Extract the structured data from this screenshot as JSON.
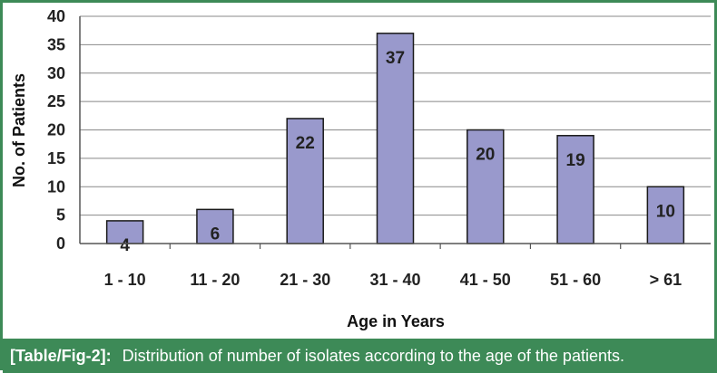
{
  "chart_data": {
    "type": "bar",
    "categories": [
      "1 - 10",
      "11 - 20",
      "21 - 30",
      "31 - 40",
      "41 - 50",
      "51 - 60",
      "> 61"
    ],
    "values": [
      4,
      6,
      22,
      37,
      20,
      19,
      10
    ],
    "data_labels": [
      "4",
      "6",
      "22",
      "37",
      "20",
      "19",
      "10"
    ],
    "xlabel": "Age in Years",
    "ylabel": "No. of Patients",
    "ylim": [
      0,
      40
    ],
    "yticks": [
      0,
      5,
      10,
      15,
      20,
      25,
      30,
      35,
      40
    ],
    "grid": true,
    "legend": "none",
    "bar_color": "#9999cc",
    "bar_edge_color": "#1a1a1a"
  },
  "caption": {
    "tag": "[Table/Fig-2]:",
    "text": "Distribution of number of isolates according to the age of the patients."
  },
  "colors": {
    "frame": "#3d8a57",
    "caption_background": "#3d8a57",
    "caption_text": "#ffffff",
    "gridline": "#888888"
  }
}
